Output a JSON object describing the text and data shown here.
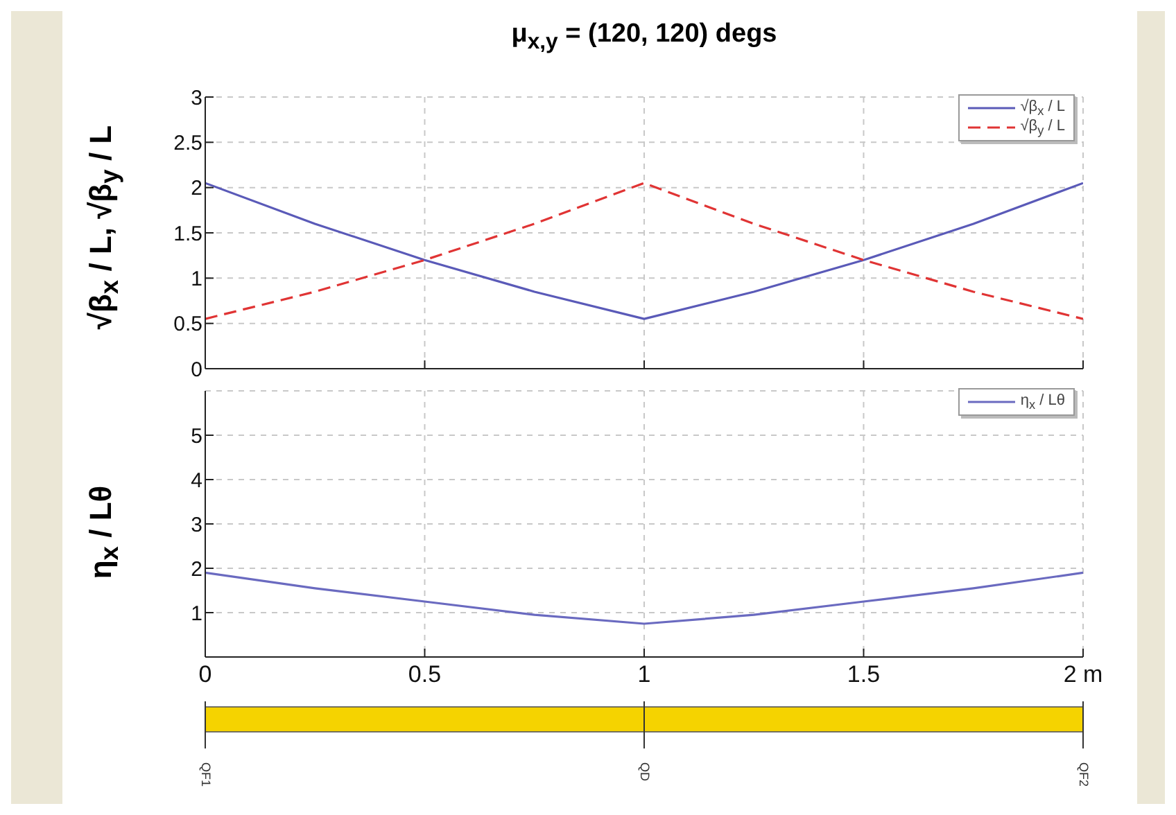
{
  "chart_data": [
    {
      "type": "line",
      "title": "μ$_{x,y}$ = (120, 120) degs",
      "ylabel": "√β$_{x}$ / L, √β$_{y}$ / L",
      "x": [
        0,
        0.25,
        0.5,
        0.75,
        1,
        1.25,
        1.5,
        1.75,
        2
      ],
      "series": [
        {
          "name": "√β$_{x}$ / L",
          "color": "#5a5ab8",
          "line_style": "solid",
          "values": [
            2.05,
            1.6,
            1.2,
            0.85,
            0.55,
            0.85,
            1.2,
            1.6,
            2.05
          ]
        },
        {
          "name": "√β$_{y}$ / L",
          "color": "#e03434",
          "line_style": "dashed",
          "values": [
            0.55,
            0.85,
            1.2,
            1.6,
            2.05,
            1.6,
            1.2,
            0.85,
            0.55
          ]
        }
      ],
      "xlim": [
        0,
        2
      ],
      "xticks": [
        0,
        0.5,
        1,
        1.5,
        2
      ],
      "ylim": [
        0,
        3
      ],
      "yticks": [
        0,
        0.5,
        1,
        1.5,
        2,
        2.5,
        3
      ],
      "grid": true,
      "legend": "top right",
      "tick_labels": "y"
    },
    {
      "type": "line",
      "ylabel": "η$_{x}$ / Lθ",
      "x": [
        0,
        0.25,
        0.5,
        0.75,
        1,
        1.25,
        1.5,
        1.75,
        2
      ],
      "series": [
        {
          "name": "η$_{x}$ / Lθ",
          "color": "#6a6ac0",
          "line_style": "solid",
          "values": [
            1.9,
            1.55,
            1.25,
            0.95,
            0.75,
            0.95,
            1.25,
            1.55,
            1.9
          ]
        }
      ],
      "xlim": [
        0,
        2
      ],
      "xticks": [
        0,
        0.5,
        1,
        1.5,
        {
          "value": 2,
          "label": "2 m"
        }
      ],
      "ylim": [
        0,
        6
      ],
      "yticks": [
        1,
        2,
        3,
        4,
        5
      ],
      "grid": true,
      "legend": "top right",
      "annotations": [
        {
          "text": "QF1",
          "x": 0
        },
        {
          "text": "QD",
          "x": 1
        },
        {
          "text": "QF2",
          "x": 2
        }
      ]
    }
  ]
}
